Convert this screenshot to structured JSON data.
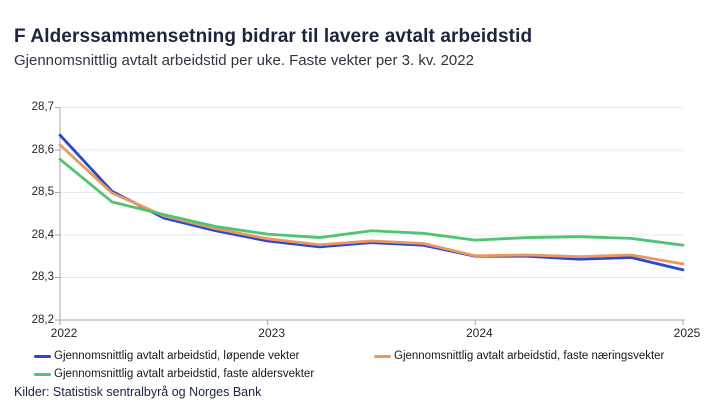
{
  "header": {
    "title": "F Alderssammensetning bidrar til lavere avtalt arbeidstid",
    "subtitle": "Gjennomsnittlig avtalt arbeidstid per uke. Faste vekter per 3. kv. 2022"
  },
  "source": "Kilder: Statistisk sentralbyrå og Norges Bank",
  "colors": {
    "title_navy": "#1b2440",
    "axis_line": "#a3a7ab",
    "gridline": "#e8e8e8",
    "tick_text": "#1f2329"
  },
  "chart_data": {
    "type": "line",
    "title": "F Alderssammensetning bidrar til lavere avtalt arbeidstid",
    "subtitle": "Gjennomsnittlig avtalt arbeidstid per uke. Faste vekter per 3. kv. 2022",
    "xlabel": "",
    "ylabel": "",
    "xlim": [
      2022,
      2025
    ],
    "ylim": [
      28.2,
      28.7
    ],
    "grid": "horizontal",
    "legend_position": "bottom",
    "x": [
      2022.0,
      2022.25,
      2022.5,
      2022.75,
      2023.0,
      2023.25,
      2023.5,
      2023.75,
      2024.0,
      2024.25,
      2024.5,
      2024.75,
      2025.0
    ],
    "series": [
      {
        "name": "Gjennomsnittlig avtalt arbeidstid, løpende vekter",
        "color": "#2b46d9",
        "values": [
          28.635,
          28.503,
          28.44,
          28.41,
          28.386,
          28.372,
          28.382,
          28.376,
          28.35,
          28.35,
          28.343,
          28.347,
          28.318
        ]
      },
      {
        "name": "Gjennomsnittlig avtalt arbeidstid, faste næringsvekter",
        "color": "#e9995c",
        "values": [
          28.612,
          28.499,
          28.445,
          28.415,
          28.391,
          28.377,
          28.386,
          28.38,
          28.351,
          28.353,
          28.349,
          28.353,
          28.332
        ]
      },
      {
        "name": "Gjennomsnittlig avtalt arbeidstid, faste aldersvekter",
        "color": "#50c473",
        "values": [
          28.578,
          28.478,
          28.448,
          28.42,
          28.402,
          28.394,
          28.41,
          28.404,
          28.388,
          28.394,
          28.396,
          28.392,
          28.376
        ]
      }
    ],
    "yticks": [
      {
        "value": 28.7,
        "label": "28,7"
      },
      {
        "value": 28.6,
        "label": "28,6"
      },
      {
        "value": 28.5,
        "label": "28,5"
      },
      {
        "value": 28.4,
        "label": "28,4"
      },
      {
        "value": 28.3,
        "label": "28,3"
      },
      {
        "value": 28.2,
        "label": "28,2"
      }
    ],
    "xticks": [
      {
        "value": 2022,
        "label": "2022"
      },
      {
        "value": 2023,
        "label": "2023"
      },
      {
        "value": 2024,
        "label": "2024"
      },
      {
        "value": 2025,
        "label": "2025"
      }
    ]
  }
}
